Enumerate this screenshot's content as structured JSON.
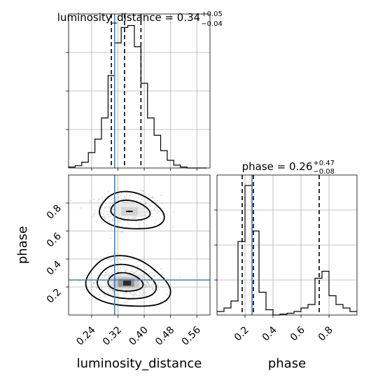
{
  "chart_data": {
    "type": "corner",
    "parameters": [
      "luminosity_distance",
      "phase"
    ],
    "axis_labels": {
      "x_bottom_left": "luminosity_distance",
      "x_bottom_right": "phase",
      "y_left_2d": "phase"
    },
    "truth_values": {
      "luminosity_distance": 0.31,
      "phase": 0.25
    },
    "truth_color": "#4682b4",
    "grid": true,
    "panels": {
      "hist_luminosity_distance": {
        "title_prefix": "luminosity_distance = 0.34",
        "title_sup": "+0.05",
        "title_sub": "−0.04",
        "xlim": [
          0.17,
          0.6
        ],
        "xticks": [
          0.24,
          0.32,
          0.4,
          0.48,
          0.56
        ],
        "quantiles": [
          0.3,
          0.34,
          0.39
        ],
        "bins": [
          0.17,
          0.19,
          0.21,
          0.23,
          0.25,
          0.27,
          0.29,
          0.31,
          0.33,
          0.35,
          0.37,
          0.39,
          0.41,
          0.43,
          0.45,
          0.47,
          0.49,
          0.51,
          0.53,
          0.55,
          0.57,
          0.59
        ],
        "counts": [
          0.5,
          1.2,
          3,
          8,
          15,
          26,
          48,
          65,
          73,
          74,
          63,
          44,
          26,
          17,
          9,
          4,
          1.5,
          0.5,
          0,
          0,
          0
        ],
        "counts_max": 80
      },
      "hist_phase": {
        "title_prefix": "phase = 0.26",
        "title_sup": "+0.47",
        "title_sub": "−0.08",
        "xlim": [
          0.0,
          1.0
        ],
        "xticks": [
          "0.2",
          "0.4",
          "0.6",
          "0.8"
        ],
        "xtick_values": [
          0.2,
          0.4,
          0.6,
          0.8
        ],
        "quantiles": [
          0.18,
          0.26,
          0.73
        ],
        "bins": [
          0.0,
          0.05,
          0.1,
          0.15,
          0.2,
          0.25,
          0.3,
          0.35,
          0.4,
          0.45,
          0.5,
          0.55,
          0.6,
          0.65,
          0.7,
          0.75,
          0.8,
          0.85,
          0.9,
          0.95,
          1.0
        ],
        "counts": [
          2,
          4,
          8,
          42,
          74,
          48,
          13,
          3,
          0,
          0.5,
          1,
          2,
          4,
          6,
          21,
          25,
          11,
          6,
          4,
          2
        ],
        "counts_max": 80
      },
      "scatter_2d": {
        "xlim": [
          0.17,
          0.6
        ],
        "ylim": [
          0.0,
          1.0
        ],
        "xticks": [
          "0.24",
          "0.32",
          "0.40",
          "0.48",
          "0.56"
        ],
        "yticks": [
          "0.2",
          "0.4",
          "0.6",
          "0.8"
        ],
        "ytick_values": [
          0.2,
          0.4,
          0.6,
          0.8
        ],
        "modes": [
          {
            "center": [
              0.35,
              0.75
            ],
            "sigma": [
              0.05,
              0.06
            ],
            "n": 300
          },
          {
            "center": [
              0.35,
              0.23
            ],
            "sigma": [
              0.05,
              0.05
            ],
            "n": 500
          }
        ]
      }
    }
  }
}
